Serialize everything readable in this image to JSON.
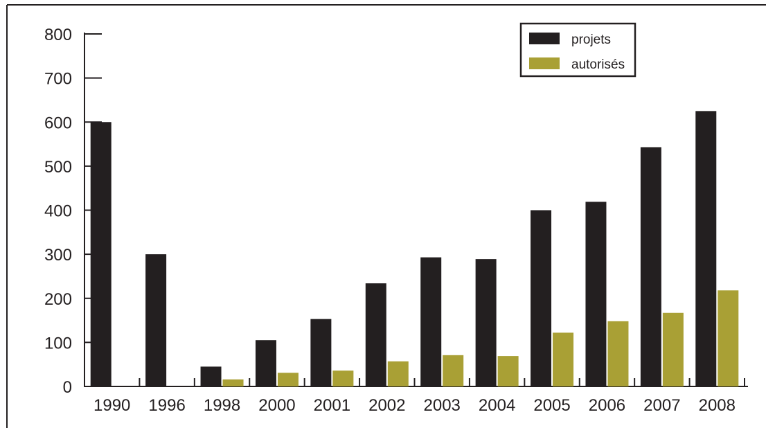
{
  "chart_data": {
    "type": "bar",
    "title": "",
    "xlabel": "",
    "ylabel": "",
    "categories": [
      "1990",
      "1996",
      "1998",
      "2000",
      "2001",
      "2002",
      "2003",
      "2004",
      "2005",
      "2006",
      "2007",
      "2008"
    ],
    "series": [
      {
        "name": "projets",
        "color": "#231f20",
        "values": [
          600,
          300,
          45,
          105,
          153,
          234,
          293,
          289,
          400,
          419,
          543,
          625
        ]
      },
      {
        "name": "autorisés",
        "color": "#a9a035",
        "values": [
          0,
          0,
          16,
          31,
          36,
          57,
          71,
          69,
          122,
          148,
          167,
          218
        ]
      }
    ],
    "ylim": [
      0,
      800
    ],
    "yticks": [
      "0",
      "100",
      "200",
      "300",
      "400",
      "500",
      "600",
      "700",
      "800"
    ],
    "legend_position": "top-right",
    "grid": false
  }
}
